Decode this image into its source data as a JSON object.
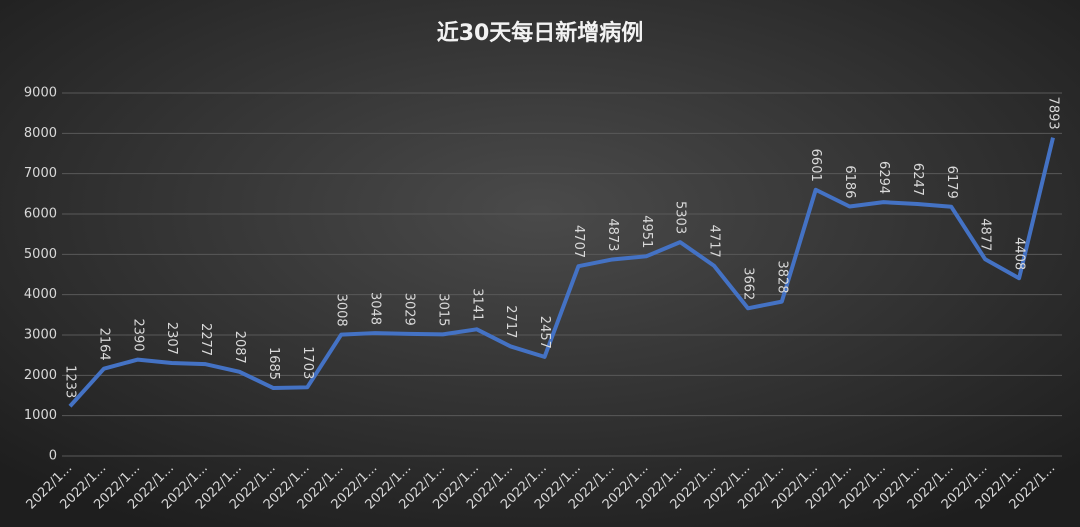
{
  "chart_data": {
    "type": "line",
    "title": "近30天每日新增病例",
    "categories": [
      "2022/1...",
      "2022/1...",
      "2022/1...",
      "2022/1...",
      "2022/1...",
      "2022/1...",
      "2022/1...",
      "2022/1...",
      "2022/1...",
      "2022/1...",
      "2022/1...",
      "2022/1...",
      "2022/1...",
      "2022/1...",
      "2022/1...",
      "2022/1...",
      "2022/1...",
      "2022/1...",
      "2022/1...",
      "2022/1...",
      "2022/1...",
      "2022/1...",
      "2022/1...",
      "2022/1...",
      "2022/1...",
      "2022/1...",
      "2022/1...",
      "2022/1...",
      "2022/1...",
      "2022/1..."
    ],
    "values": [
      1233,
      2164,
      2390,
      2307,
      2277,
      2087,
      1685,
      1703,
      3008,
      3048,
      3029,
      3015,
      3141,
      2717,
      2457,
      4707,
      4873,
      4951,
      5303,
      4717,
      3662,
      3828,
      6601,
      6186,
      6294,
      6247,
      6179,
      4877,
      4408,
      7893
    ],
    "color": "#4472c4",
    "ylim": [
      0,
      9000
    ],
    "yticks": [
      0,
      1000,
      2000,
      3000,
      4000,
      5000,
      6000,
      7000,
      8000,
      9000
    ],
    "grid": true
  }
}
